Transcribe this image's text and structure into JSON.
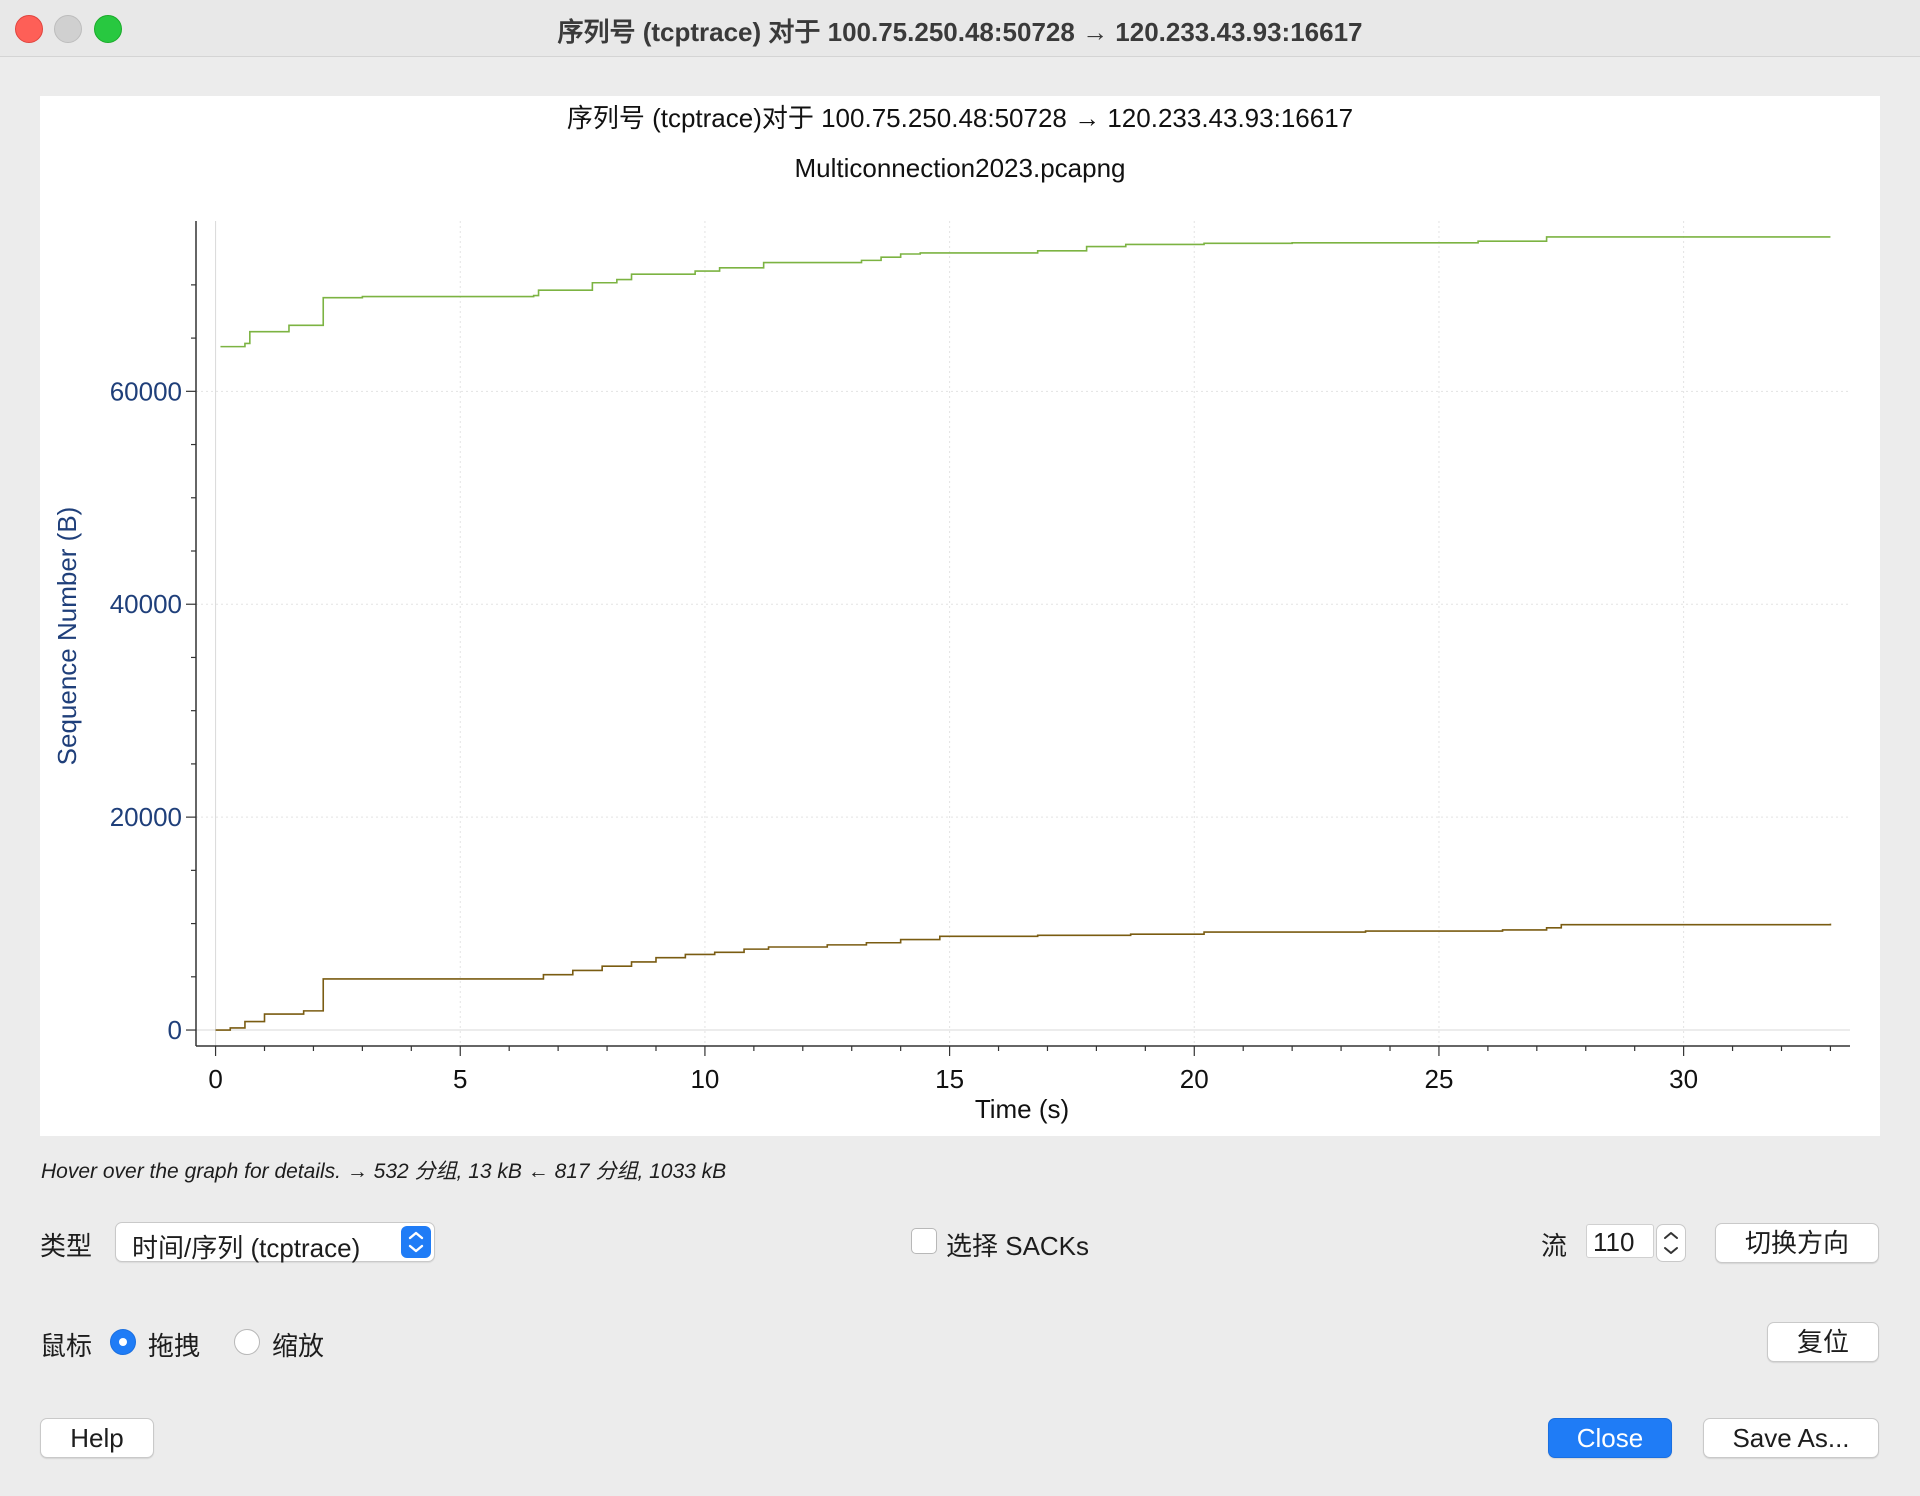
{
  "window": {
    "title": "序列号 (tcptrace) 对于 100.75.250.48:50728 → 120.233.43.93:16617"
  },
  "graph": {
    "title": "序列号 (tcptrace)对于 100.75.250.48:50728 → 120.233.43.93:16617",
    "subtitle": "Multiconnection2023.pcapng"
  },
  "chart_data": {
    "type": "line",
    "title": "序列号 (tcptrace)对于 100.75.250.48:50728 → 120.233.43.93:16617",
    "subtitle": "Multiconnection2023.pcapng",
    "xlabel": "Time (s)",
    "ylabel": "Sequence Number (B)",
    "xlim": [
      -0.4,
      33.4
    ],
    "ylim": [
      -1500,
      76000
    ],
    "x_ticks": [
      0,
      5,
      10,
      15,
      20,
      25,
      30
    ],
    "y_ticks": [
      0,
      20000,
      40000,
      60000
    ],
    "grid": true,
    "series": [
      {
        "name": "",
        "color": "#7cb342",
        "x": [
          0.1,
          0.6,
          0.7,
          1.5,
          2.2,
          3.0,
          6.5,
          6.6,
          7.7,
          8.2,
          8.5,
          9.8,
          10.3,
          11.2,
          13.2,
          13.6,
          14.0,
          14.4,
          16.8,
          17.8,
          18.6,
          20.2,
          22.0,
          25.8,
          27.2,
          33.0
        ],
        "values": [
          64200,
          64500,
          65600,
          66200,
          68800,
          68900,
          69000,
          69500,
          70200,
          70500,
          71000,
          71300,
          71600,
          72100,
          72300,
          72600,
          72900,
          73000,
          73200,
          73600,
          73800,
          73900,
          73950,
          74100,
          74500,
          74500
        ]
      },
      {
        "name": "",
        "color": "#7a5c12",
        "x": [
          0,
          0.3,
          0.6,
          1.0,
          1.8,
          2.2,
          2.5,
          4.5,
          6.2,
          6.7,
          7.3,
          7.9,
          8.5,
          9.0,
          9.6,
          10.2,
          10.8,
          11.3,
          12.5,
          13.3,
          14.0,
          14.8,
          16.8,
          18.7,
          20.2,
          23.5,
          26.3,
          27.2,
          27.5,
          33.0
        ],
        "values": [
          0,
          200,
          800,
          1500,
          1800,
          4800,
          4800,
          4800,
          4800,
          5200,
          5600,
          6000,
          6400,
          6800,
          7100,
          7300,
          7600,
          7800,
          8000,
          8200,
          8500,
          8800,
          8900,
          9000,
          9200,
          9300,
          9400,
          9600,
          9900,
          10000
        ]
      }
    ]
  },
  "hint_text": "Hover over the graph for details. → 532 分组, 13 kB ← 817 分组, 1033 kB",
  "controls": {
    "type_label": "类型",
    "type_value": "时间/序列 (tcptrace)",
    "sacks_label": "选择 SACKs",
    "stream_label": "流",
    "stream_value": "110",
    "switch_direction": "切换方向",
    "mouse_label": "鼠标",
    "drag_label": "拖拽",
    "zoom_label": "缩放",
    "reset_label": "复位"
  },
  "footer": {
    "help": "Help",
    "close": "Close",
    "save_as": "Save As..."
  },
  "colors": {
    "accent": "#1f7cf6",
    "series_green": "#7cb342",
    "series_brown": "#7a5c12",
    "axis_blue": "#1f3f7a"
  }
}
